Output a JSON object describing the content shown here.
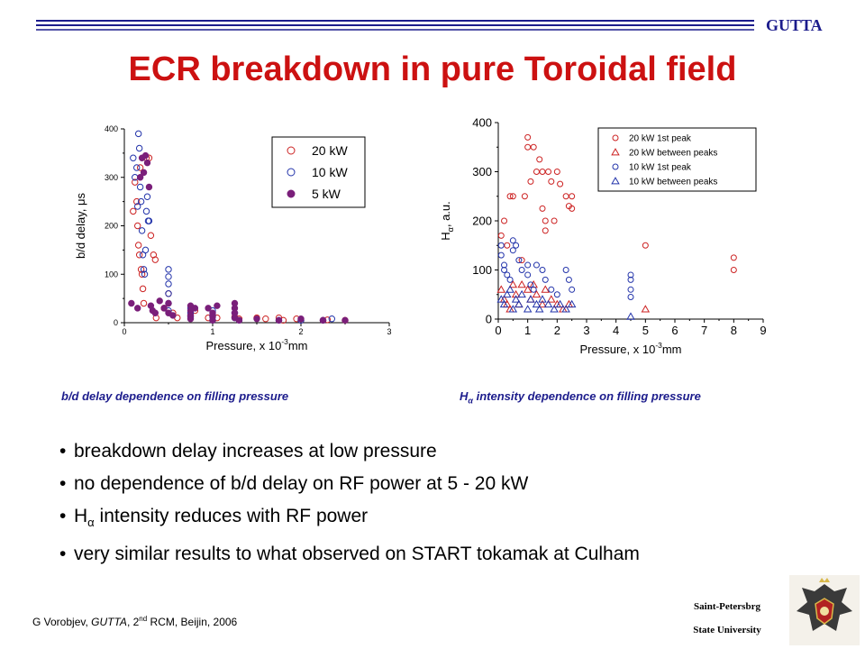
{
  "header": {
    "brand": "GUTTA",
    "title": "ECR breakdown in pure Toroidal field"
  },
  "captions": {
    "left": "b/d delay dependence on filling pressure",
    "right_prefix": "H",
    "right_sub": "α",
    "right_rest": " intensity dependence on filling pressure"
  },
  "bullets": [
    {
      "text": "breakdown delay increases at low pressure"
    },
    {
      "text": "no dependence of b/d delay on RF power at 5 - 20 kW"
    },
    {
      "prefix": "H",
      "sub": "α",
      "text": " intensity reduces with RF power"
    },
    {
      "text": "very similar results to what observed on START tokamak at Culham"
    }
  ],
  "footer": {
    "author": "G Vorobjev, ",
    "project": "GUTTA",
    "rest_a": ", 2",
    "sup": "nd",
    "rest_b": " RCM, Beijin, 2006",
    "university_line1": "Saint-Petersbrg",
    "university_line2": "State University"
  },
  "colors": {
    "title": "#cc1111",
    "caption": "#1c1c8c",
    "red": "#cc2222",
    "blue": "#2233aa",
    "purple": "#7a1f7a"
  },
  "chart_data": [
    {
      "type": "scatter",
      "title": "",
      "xlabel_base": "Pressure, x 10",
      "xlabel_sup": "-3",
      "xlabel_tail": "mm",
      "ylabel_main": "b/d delay, ",
      "ylabel_unit": "μs",
      "xlim": [
        0,
        3
      ],
      "ylim": [
        0,
        400
      ],
      "xticks": [
        "0",
        "1",
        "2",
        "3"
      ],
      "yticks": [
        "0",
        "100",
        "200",
        "300",
        "400"
      ],
      "legend_position": "top-right",
      "series": [
        {
          "name": "20 kW",
          "marker": "circle-open",
          "color": "#cc2222",
          "points": [
            [
              0.1,
              230
            ],
            [
              0.12,
              290
            ],
            [
              0.14,
              250
            ],
            [
              0.15,
              200
            ],
            [
              0.16,
              160
            ],
            [
              0.17,
              140
            ],
            [
              0.18,
              320
            ],
            [
              0.19,
              110
            ],
            [
              0.2,
              100
            ],
            [
              0.21,
              70
            ],
            [
              0.22,
              40
            ],
            [
              0.25,
              340
            ],
            [
              0.28,
              340
            ],
            [
              0.3,
              180
            ],
            [
              0.33,
              140
            ],
            [
              0.35,
              130
            ],
            [
              0.36,
              10
            ],
            [
              0.45,
              30
            ],
            [
              0.5,
              60
            ],
            [
              0.55,
              20
            ],
            [
              0.6,
              10
            ],
            [
              0.75,
              15
            ],
            [
              0.8,
              25
            ],
            [
              0.95,
              10
            ],
            [
              1.0,
              15
            ],
            [
              1.05,
              10
            ],
            [
              1.25,
              12
            ],
            [
              1.3,
              8
            ],
            [
              1.5,
              10
            ],
            [
              1.6,
              8
            ],
            [
              1.75,
              10
            ],
            [
              1.8,
              5
            ],
            [
              1.95,
              8
            ],
            [
              2.0,
              5
            ],
            [
              2.25,
              5
            ],
            [
              2.3,
              6
            ],
            [
              2.5,
              5
            ]
          ]
        },
        {
          "name": "10 kW",
          "marker": "circle-open",
          "color": "#2233aa",
          "points": [
            [
              0.1,
              340
            ],
            [
              0.12,
              300
            ],
            [
              0.14,
              320
            ],
            [
              0.15,
              240
            ],
            [
              0.16,
              390
            ],
            [
              0.17,
              360
            ],
            [
              0.18,
              280
            ],
            [
              0.19,
              250
            ],
            [
              0.2,
              190
            ],
            [
              0.21,
              140
            ],
            [
              0.22,
              110
            ],
            [
              0.23,
              100
            ],
            [
              0.24,
              150
            ],
            [
              0.25,
              230
            ],
            [
              0.26,
              260
            ],
            [
              0.27,
              210
            ],
            [
              0.28,
              210
            ],
            [
              0.5,
              110
            ],
            [
              0.5,
              95
            ],
            [
              0.5,
              80
            ],
            [
              0.5,
              60
            ],
            [
              0.5,
              40
            ],
            [
              0.5,
              25
            ],
            [
              0.75,
              30
            ],
            [
              0.75,
              20
            ],
            [
              0.75,
              12
            ],
            [
              1.0,
              25
            ],
            [
              1.0,
              15
            ],
            [
              1.0,
              5
            ],
            [
              1.25,
              20
            ],
            [
              1.25,
              10
            ],
            [
              1.3,
              5
            ],
            [
              1.75,
              5
            ],
            [
              2.0,
              5
            ],
            [
              2.25,
              5
            ],
            [
              2.35,
              8
            ]
          ]
        },
        {
          "name": "5 kW",
          "marker": "circle-filled",
          "color": "#7a1f7a",
          "points": [
            [
              0.08,
              40
            ],
            [
              0.15,
              30
            ],
            [
              0.18,
              300
            ],
            [
              0.2,
              340
            ],
            [
              0.22,
              310
            ],
            [
              0.24,
              345
            ],
            [
              0.26,
              330
            ],
            [
              0.28,
              280
            ],
            [
              0.3,
              35
            ],
            [
              0.32,
              25
            ],
            [
              0.35,
              20
            ],
            [
              0.4,
              45
            ],
            [
              0.45,
              30
            ],
            [
              0.5,
              40
            ],
            [
              0.5,
              20
            ],
            [
              0.55,
              15
            ],
            [
              0.75,
              35
            ],
            [
              0.75,
              25
            ],
            [
              0.75,
              15
            ],
            [
              0.75,
              8
            ],
            [
              0.8,
              30
            ],
            [
              0.95,
              30
            ],
            [
              1.0,
              20
            ],
            [
              1.0,
              12
            ],
            [
              1.0,
              5
            ],
            [
              1.05,
              35
            ],
            [
              1.25,
              40
            ],
            [
              1.25,
              30
            ],
            [
              1.25,
              20
            ],
            [
              1.25,
              10
            ],
            [
              1.3,
              5
            ],
            [
              1.5,
              8
            ],
            [
              1.75,
              5
            ],
            [
              2.0,
              8
            ],
            [
              2.25,
              5
            ],
            [
              2.5,
              5
            ]
          ]
        }
      ]
    },
    {
      "type": "scatter",
      "title": "",
      "xlabel_base": "Pressure, x 10",
      "xlabel_sup": "-3",
      "xlabel_tail": "mm",
      "ylabel_main": "H",
      "ylabel_sub": "α",
      "ylabel_tail": ", a.u.",
      "xlim": [
        0,
        9
      ],
      "ylim": [
        0,
        400
      ],
      "xticks": [
        "0",
        "1",
        "2",
        "3",
        "4",
        "5",
        "6",
        "7",
        "8",
        "9"
      ],
      "yticks": [
        "0",
        "100",
        "200",
        "300",
        "400"
      ],
      "legend_position": "top-right",
      "series": [
        {
          "name": "20 kW 1st peak",
          "marker": "circle-open",
          "color": "#cc2222",
          "points": [
            [
              0.1,
              170
            ],
            [
              0.2,
              200
            ],
            [
              0.3,
              150
            ],
            [
              0.4,
              250
            ],
            [
              0.5,
              250
            ],
            [
              0.8,
              120
            ],
            [
              0.9,
              250
            ],
            [
              1.0,
              370
            ],
            [
              1.0,
              350
            ],
            [
              1.1,
              280
            ],
            [
              1.2,
              350
            ],
            [
              1.3,
              300
            ],
            [
              1.4,
              325
            ],
            [
              1.5,
              300
            ],
            [
              1.5,
              225
            ],
            [
              1.6,
              200
            ],
            [
              1.6,
              180
            ],
            [
              1.7,
              300
            ],
            [
              1.8,
              280
            ],
            [
              1.9,
              200
            ],
            [
              2.0,
              300
            ],
            [
              2.1,
              275
            ],
            [
              2.3,
              250
            ],
            [
              2.4,
              230
            ],
            [
              2.5,
              250
            ],
            [
              2.5,
              225
            ],
            [
              5.0,
              150
            ],
            [
              8.0,
              125
            ],
            [
              8.0,
              100
            ]
          ]
        },
        {
          "name": "20 kW between peaks",
          "marker": "triangle-open",
          "color": "#cc2222",
          "points": [
            [
              0.1,
              60
            ],
            [
              0.2,
              40
            ],
            [
              0.3,
              30
            ],
            [
              0.4,
              20
            ],
            [
              0.5,
              70
            ],
            [
              0.6,
              50
            ],
            [
              0.7,
              30
            ],
            [
              0.8,
              70
            ],
            [
              1.0,
              60
            ],
            [
              1.1,
              40
            ],
            [
              1.2,
              70
            ],
            [
              1.3,
              50
            ],
            [
              1.5,
              30
            ],
            [
              1.6,
              60
            ],
            [
              1.8,
              40
            ],
            [
              2.0,
              30
            ],
            [
              2.2,
              20
            ],
            [
              2.4,
              30
            ],
            [
              5.0,
              20
            ]
          ]
        },
        {
          "name": "10 kW 1st peak",
          "marker": "circle-open",
          "color": "#2233aa",
          "points": [
            [
              0.1,
              150
            ],
            [
              0.1,
              130
            ],
            [
              0.2,
              110
            ],
            [
              0.2,
              100
            ],
            [
              0.3,
              90
            ],
            [
              0.4,
              80
            ],
            [
              0.5,
              160
            ],
            [
              0.5,
              140
            ],
            [
              0.6,
              150
            ],
            [
              0.7,
              120
            ],
            [
              0.8,
              100
            ],
            [
              1.0,
              110
            ],
            [
              1.0,
              90
            ],
            [
              1.1,
              70
            ],
            [
              1.2,
              60
            ],
            [
              1.3,
              110
            ],
            [
              1.5,
              100
            ],
            [
              1.6,
              80
            ],
            [
              1.8,
              60
            ],
            [
              2.0,
              50
            ],
            [
              2.3,
              100
            ],
            [
              2.4,
              80
            ],
            [
              2.5,
              60
            ],
            [
              4.5,
              90
            ],
            [
              4.5,
              80
            ],
            [
              4.5,
              60
            ],
            [
              4.5,
              45
            ]
          ]
        },
        {
          "name": "10 kW between peaks",
          "marker": "triangle-open",
          "color": "#2233aa",
          "points": [
            [
              0.1,
              40
            ],
            [
              0.2,
              30
            ],
            [
              0.3,
              50
            ],
            [
              0.4,
              60
            ],
            [
              0.5,
              20
            ],
            [
              0.6,
              40
            ],
            [
              0.7,
              30
            ],
            [
              0.8,
              50
            ],
            [
              1.0,
              20
            ],
            [
              1.1,
              40
            ],
            [
              1.3,
              30
            ],
            [
              1.4,
              20
            ],
            [
              1.5,
              40
            ],
            [
              1.7,
              30
            ],
            [
              1.9,
              20
            ],
            [
              2.1,
              30
            ],
            [
              2.3,
              20
            ],
            [
              2.5,
              30
            ],
            [
              4.5,
              5
            ]
          ]
        }
      ]
    }
  ]
}
